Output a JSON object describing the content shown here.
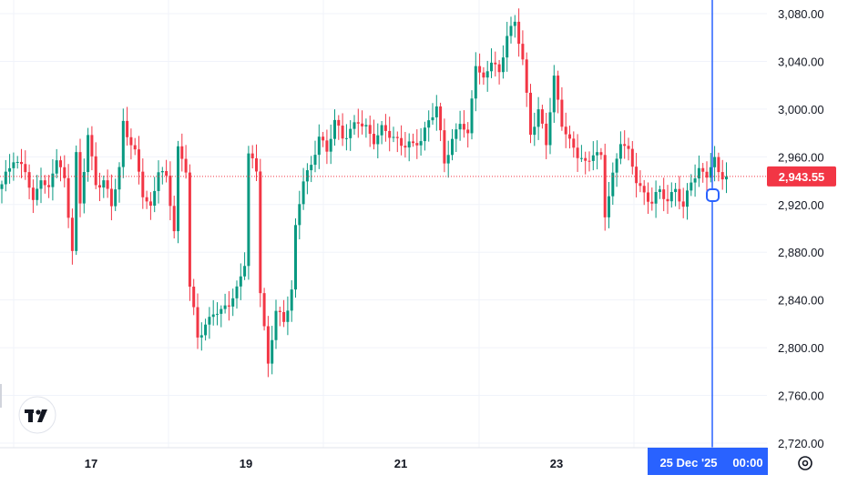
{
  "chart_data": {
    "type": "candlestick",
    "title": "",
    "xlabel": "",
    "ylabel": "",
    "ylim": [
      2720,
      3080
    ],
    "y_ticks": [
      "3,080.00",
      "3,040.00",
      "3,000.00",
      "2,960.00",
      "2,920.00",
      "2,880.00",
      "2,840.00",
      "2,800.00",
      "2,760.00",
      "2,720.00"
    ],
    "x_ticks": [
      "17",
      "19",
      "21",
      "23"
    ],
    "grid": true,
    "current_price": 2943.55,
    "current_price_label": "2,943.55",
    "crosshair_label": "25 Dec '25",
    "crosshair_time": "00:00",
    "colors": {
      "up": "#089981",
      "down": "#f23645",
      "crosshair": "#2962ff",
      "grid": "#f0f3fa",
      "price_line": "#f23645"
    },
    "path": [
      [
        0,
        2935
      ],
      [
        3,
        2960
      ],
      [
        6,
        2948
      ],
      [
        8,
        2920
      ],
      [
        10,
        2945
      ],
      [
        12,
        2932
      ],
      [
        14,
        2958
      ],
      [
        16,
        2940
      ],
      [
        18,
        2885
      ],
      [
        19,
        2962
      ],
      [
        20,
        2918
      ],
      [
        22,
        2978
      ],
      [
        24,
        2938
      ],
      [
        26,
        2940
      ],
      [
        28,
        2918
      ],
      [
        30,
        2950
      ],
      [
        31,
        2990
      ],
      [
        34,
        2962
      ],
      [
        36,
        2928
      ],
      [
        38,
        2918
      ],
      [
        40,
        2950
      ],
      [
        42,
        2940
      ],
      [
        44,
        2900
      ],
      [
        45,
        2968
      ],
      [
        47,
        2950
      ],
      [
        48,
        2850
      ],
      [
        50,
        2808
      ],
      [
        52,
        2820
      ],
      [
        54,
        2830
      ],
      [
        56,
        2828
      ],
      [
        58,
        2838
      ],
      [
        60,
        2850
      ],
      [
        62,
        2870
      ],
      [
        63,
        2960
      ],
      [
        65,
        2950
      ],
      [
        66,
        2850
      ],
      [
        68,
        2785
      ],
      [
        70,
        2830
      ],
      [
        72,
        2822
      ],
      [
        74,
        2850
      ],
      [
        75,
        2900
      ],
      [
        77,
        2940
      ],
      [
        79,
        2952
      ],
      [
        81,
        2980
      ],
      [
        83,
        2962
      ],
      [
        85,
        2990
      ],
      [
        87,
        2978
      ],
      [
        89,
        2982
      ],
      [
        91,
        2988
      ],
      [
        93,
        2985
      ],
      [
        95,
        2975
      ],
      [
        97,
        2982
      ],
      [
        99,
        2978
      ],
      [
        101,
        2975
      ],
      [
        103,
        2970
      ],
      [
        105,
        2968
      ],
      [
        107,
        2975
      ],
      [
        109,
        2992
      ],
      [
        111,
        3000
      ],
      [
        113,
        2955
      ],
      [
        115,
        2975
      ],
      [
        117,
        2990
      ],
      [
        119,
        2975
      ],
      [
        121,
        3040
      ],
      [
        123,
        3025
      ],
      [
        125,
        3040
      ],
      [
        127,
        3028
      ],
      [
        129,
        3065
      ],
      [
        131,
        3072
      ],
      [
        133,
        3040
      ],
      [
        135,
        2980
      ],
      [
        137,
        3000
      ],
      [
        139,
        2970
      ],
      [
        141,
        3025
      ],
      [
        143,
        2990
      ],
      [
        145,
        2972
      ],
      [
        147,
        2960
      ],
      [
        149,
        2955
      ],
      [
        151,
        2965
      ],
      [
        153,
        2958
      ],
      [
        154,
        2910
      ],
      [
        156,
        2945
      ],
      [
        158,
        2975
      ],
      [
        160,
        2962
      ],
      [
        162,
        2940
      ],
      [
        164,
        2930
      ],
      [
        166,
        2922
      ],
      [
        168,
        2930
      ],
      [
        170,
        2924
      ],
      [
        172,
        2935
      ],
      [
        174,
        2915
      ],
      [
        176,
        2940
      ],
      [
        178,
        2950
      ],
      [
        180,
        2945
      ],
      [
        182,
        2955
      ],
      [
        183,
        2947
      ],
      [
        185,
        2943.55
      ]
    ]
  }
}
